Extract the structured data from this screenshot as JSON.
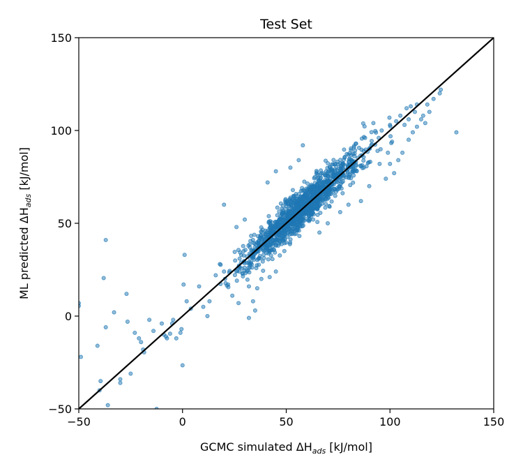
{
  "chart_data": {
    "type": "scatter",
    "title": "Test Set",
    "xlabel": {
      "prefix": "GCMC simulated ΔH",
      "sub": "ads",
      "suffix": " [kJ/mol]"
    },
    "ylabel": {
      "prefix": "ML predicted ΔH",
      "sub": "ads",
      "suffix": " [kJ/mol]"
    },
    "xlim": [
      -50,
      150
    ],
    "ylim": [
      -50,
      150
    ],
    "xticks": [
      -50,
      0,
      50,
      100,
      150
    ],
    "yticks": [
      -50,
      0,
      50,
      100,
      150
    ],
    "grid": false,
    "marker_color": "#1f77b4",
    "marker_alpha": 0.5,
    "parity_line": {
      "from": [
        -50,
        -50
      ],
      "to": [
        150,
        150
      ],
      "color": "#000000"
    },
    "outliers": [
      [
        -50,
        7
      ],
      [
        -50,
        5.5
      ],
      [
        -49,
        -22
      ],
      [
        -41,
        -16
      ],
      [
        -40,
        -40
      ],
      [
        -39.5,
        -35
      ],
      [
        -38,
        20.5
      ],
      [
        -37,
        41
      ],
      [
        -37,
        -6
      ],
      [
        -36,
        -48
      ],
      [
        -33,
        2
      ],
      [
        -30,
        -36
      ],
      [
        -30,
        -34
      ],
      [
        -27,
        12
      ],
      [
        -26.5,
        -3
      ],
      [
        -25,
        -31
      ],
      [
        -23,
        -9
      ],
      [
        -21,
        -12
      ],
      [
        -20,
        -14
      ],
      [
        -19,
        -18
      ],
      [
        -18.5,
        -19.5
      ],
      [
        -16,
        -2
      ],
      [
        -14,
        -8
      ],
      [
        -12.5,
        -50
      ],
      [
        -10,
        -4
      ],
      [
        -9,
        -10
      ],
      [
        -8,
        -11
      ],
      [
        -7.5,
        -12
      ],
      [
        -6,
        -9.5
      ],
      [
        -5,
        -4
      ],
      [
        -4.5,
        -2
      ],
      [
        -3,
        -12
      ],
      [
        -1,
        -9
      ],
      [
        -0.5,
        -7
      ],
      [
        0,
        -26.5
      ],
      [
        1,
        33
      ],
      [
        0.5,
        17
      ],
      [
        2,
        8
      ],
      [
        4,
        4
      ],
      [
        8,
        16
      ],
      [
        10,
        5
      ],
      [
        12,
        0
      ],
      [
        13,
        8
      ],
      [
        16,
        22
      ],
      [
        18,
        28
      ],
      [
        20,
        24
      ],
      [
        20,
        60
      ],
      [
        22,
        17
      ],
      [
        24,
        11
      ],
      [
        26,
        48
      ],
      [
        27,
        7
      ],
      [
        30,
        52
      ],
      [
        32,
        16
      ],
      [
        34,
        8
      ],
      [
        36,
        15
      ],
      [
        38,
        20
      ],
      [
        42,
        21
      ],
      [
        45,
        24
      ],
      [
        32,
        -1
      ],
      [
        35,
        3
      ],
      [
        41,
        72
      ],
      [
        45,
        78
      ],
      [
        52,
        80
      ],
      [
        56,
        84
      ],
      [
        58,
        92
      ],
      [
        63,
        52
      ],
      [
        66,
        45
      ],
      [
        70,
        50
      ],
      [
        76,
        56
      ],
      [
        80,
        60
      ],
      [
        86,
        62
      ],
      [
        90,
        70
      ],
      [
        95,
        82
      ],
      [
        98,
        74
      ],
      [
        100,
        82
      ],
      [
        102,
        77
      ],
      [
        104,
        84
      ],
      [
        106,
        88
      ],
      [
        109,
        95
      ],
      [
        111,
        99
      ],
      [
        113,
        102
      ],
      [
        116,
        108
      ],
      [
        118,
        114
      ],
      [
        121,
        117
      ],
      [
        124,
        120
      ],
      [
        124.5,
        122
      ],
      [
        132,
        99
      ],
      [
        108,
        112
      ],
      [
        112,
        110
      ],
      [
        115,
        106
      ],
      [
        119,
        110
      ],
      [
        92,
        104
      ],
      [
        88,
        96
      ],
      [
        96,
        100
      ],
      [
        100,
        103
      ],
      [
        103,
        105
      ],
      [
        107,
        103
      ],
      [
        109,
        106
      ],
      [
        110,
        113
      ],
      [
        113,
        114
      ],
      [
        105,
        108
      ],
      [
        117,
        104
      ],
      [
        101,
        94
      ],
      [
        99,
        88
      ],
      [
        94,
        89
      ],
      [
        91,
        92
      ]
    ],
    "cloud": {
      "count": 1350,
      "seed": 7,
      "x_mean": 57,
      "x_sd": 14,
      "x_range": [
        18,
        108
      ],
      "slope": 1.0,
      "intercept": 0.5,
      "y_sd": 5.2
    }
  }
}
